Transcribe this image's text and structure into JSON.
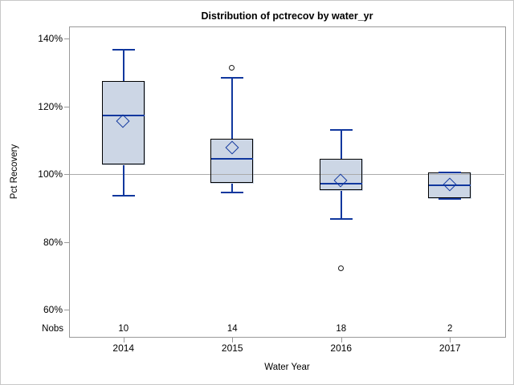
{
  "chart_data": {
    "type": "box",
    "title": "Distribution of pctrecov by water_yr",
    "xlabel": "Water Year",
    "ylabel": "Pct Recovery",
    "nobs_label": "Nobs",
    "categories": [
      "2014",
      "2015",
      "2016",
      "2017"
    ],
    "y_ticks": [
      {
        "label": "140%",
        "value": 140
      },
      {
        "label": "120%",
        "value": 120
      },
      {
        "label": "100%",
        "value": 100
      },
      {
        "label": "80%",
        "value": 80
      },
      {
        "label": "60%",
        "value": 60
      }
    ],
    "ylim": [
      55,
      144
    ],
    "reference_line": 100,
    "grid": false,
    "legend": "none",
    "series": [
      {
        "category": "2014",
        "nobs": 10,
        "whisker_low": 93.5,
        "q1": 102.6,
        "median": 117.3,
        "mean": 115.6,
        "q3": 127.5,
        "whisker_high": 136.7,
        "outliers": []
      },
      {
        "category": "2015",
        "nobs": 14,
        "whisker_low": 94.5,
        "q1": 97.2,
        "median": 104.5,
        "mean": 107.6,
        "q3": 110.4,
        "whisker_high": 128.4,
        "outliers": [
          131.3
        ]
      },
      {
        "category": "2016",
        "nobs": 18,
        "whisker_low": 86.7,
        "q1": 95.0,
        "median": 97.2,
        "mean": 98.1,
        "q3": 104.5,
        "whisker_high": 113.0,
        "outliers": [
          72.0
        ]
      },
      {
        "category": "2017",
        "nobs": 2,
        "whisker_low": 92.7,
        "q1": 92.7,
        "median": 96.7,
        "mean": 96.7,
        "q3": 100.5,
        "whisker_high": 100.5,
        "outliers": []
      }
    ],
    "colors": {
      "box_fill": "#ccd6e5",
      "box_border": "#000000",
      "line": "#10379e",
      "frame": "#9a9a9a",
      "reference_line": "#ababab",
      "outlier": "#1a1a1a",
      "background": "#ffffff"
    }
  }
}
